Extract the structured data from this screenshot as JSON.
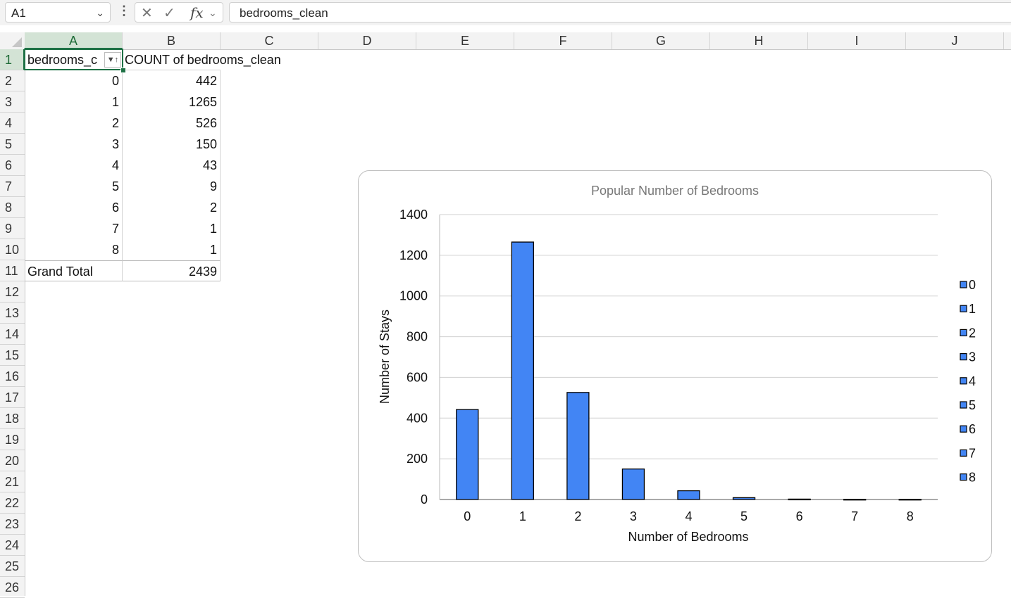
{
  "formula_bar": {
    "name_box": "A1",
    "formula": "bedrooms_clean"
  },
  "columns": [
    "A",
    "B",
    "C",
    "D",
    "E",
    "F",
    "G",
    "H",
    "I",
    "J"
  ],
  "rows": [
    "1",
    "2",
    "3",
    "4",
    "5",
    "6",
    "7",
    "8",
    "9",
    "10",
    "11",
    "12",
    "13",
    "14",
    "15",
    "16",
    "17",
    "18",
    "19",
    "20",
    "21",
    "22",
    "23",
    "24",
    "25",
    "26"
  ],
  "pivot": {
    "header_a": "bedrooms_c",
    "header_b": "COUNT of bedrooms_clean",
    "rows": [
      {
        "label": "0",
        "count": "442"
      },
      {
        "label": "1",
        "count": "1265"
      },
      {
        "label": "2",
        "count": "526"
      },
      {
        "label": "3",
        "count": "150"
      },
      {
        "label": "4",
        "count": "43"
      },
      {
        "label": "5",
        "count": "9"
      },
      {
        "label": "6",
        "count": "2"
      },
      {
        "label": "7",
        "count": "1"
      },
      {
        "label": "8",
        "count": "1"
      }
    ],
    "total_label": "Grand Total",
    "total_value": "2439"
  },
  "chart_data": {
    "type": "bar",
    "title": "Popular Number of Bedrooms",
    "xlabel": "Number of Bedrooms",
    "ylabel": "Number of Stays",
    "categories": [
      "0",
      "1",
      "2",
      "3",
      "4",
      "5",
      "6",
      "7",
      "8"
    ],
    "values": [
      442,
      1265,
      526,
      150,
      43,
      9,
      2,
      1,
      1
    ],
    "ylim": [
      0,
      1400
    ],
    "yticks": [
      0,
      200,
      400,
      600,
      800,
      1000,
      1200,
      1400
    ],
    "grid": true,
    "legend": "right",
    "legend_entries": [
      "0",
      "1",
      "2",
      "3",
      "4",
      "5",
      "6",
      "7",
      "8"
    ],
    "bar_color": "#4285f4",
    "bar_border": "#000000"
  }
}
